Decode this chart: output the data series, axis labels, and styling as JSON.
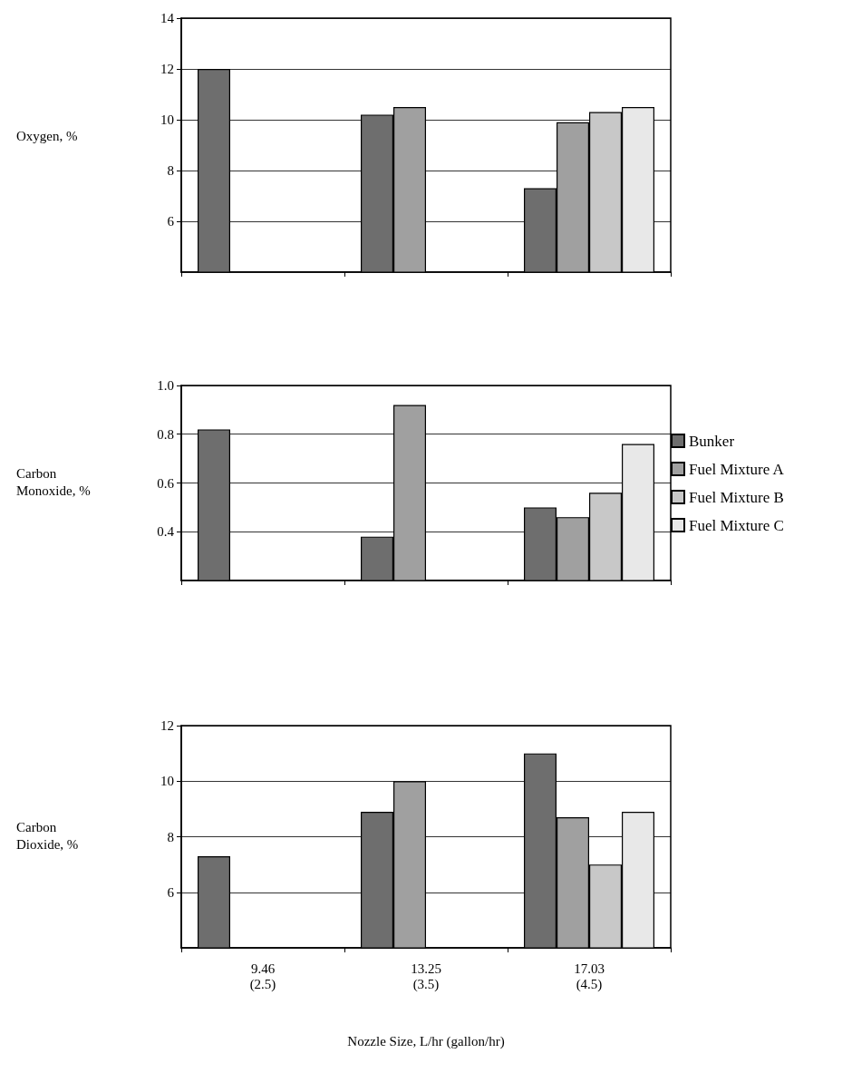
{
  "chart_data": [
    {
      "type": "bar",
      "ylabel": "Oxygen, %",
      "categories": [
        null,
        null,
        null
      ],
      "series": [
        {
          "color": "#6e6e6e",
          "values": [
            12.0,
            10.2,
            7.3
          ]
        },
        {
          "color": "#a0a0a0",
          "values": [
            null,
            10.5,
            9.9
          ]
        },
        {
          "color": "#c8c8c8",
          "values": [
            null,
            null,
            10.3
          ]
        },
        {
          "color": "#e8e8e8",
          "values": [
            null,
            null,
            10.5
          ]
        }
      ],
      "ylim": [
        4,
        14
      ],
      "yticks": [
        6,
        8,
        10,
        12,
        14
      ],
      "grid": "y",
      "legend": false
    },
    {
      "type": "bar",
      "ylabel": "Carbon Monoxide, %",
      "categories": [
        null,
        null,
        null
      ],
      "series": [
        {
          "name": "Bunker",
          "color": "#6e6e6e",
          "values": [
            0.82,
            0.38,
            0.5
          ]
        },
        {
          "name": "Fuel Mixture A",
          "color": "#a0a0a0",
          "values": [
            null,
            0.92,
            0.46
          ]
        },
        {
          "name": "Fuel Mixture B",
          "color": "#c8c8c8",
          "values": [
            null,
            null,
            0.56
          ]
        },
        {
          "name": "Fuel Mixture C",
          "color": "#e8e8e8",
          "values": [
            null,
            null,
            0.76
          ]
        }
      ],
      "ylim": [
        0.2,
        1.0
      ],
      "yticks": [
        0.4,
        0.6,
        0.8,
        {
          "value": 1.0,
          "label": "1.0"
        }
      ],
      "grid": "y",
      "legend": "right"
    },
    {
      "type": "bar",
      "ylabel": "Carbon Dioxide, %",
      "xlabel": "Nozzle Size, L/hr (gallon/hr)",
      "categories": [
        "9.46\n(2.5)",
        "13.25\n(3.5)",
        "17.03\n(4.5)"
      ],
      "series": [
        {
          "color": "#6e6e6e",
          "values": [
            7.3,
            8.9,
            11.0
          ]
        },
        {
          "color": "#a0a0a0",
          "values": [
            null,
            10.0,
            8.7
          ]
        },
        {
          "color": "#c8c8c8",
          "values": [
            null,
            null,
            7.0
          ]
        },
        {
          "color": "#e8e8e8",
          "values": [
            null,
            null,
            8.9
          ]
        }
      ],
      "ylim": [
        4,
        12
      ],
      "yticks": [
        6,
        8,
        10,
        12
      ],
      "grid": "y",
      "legend": false
    }
  ]
}
